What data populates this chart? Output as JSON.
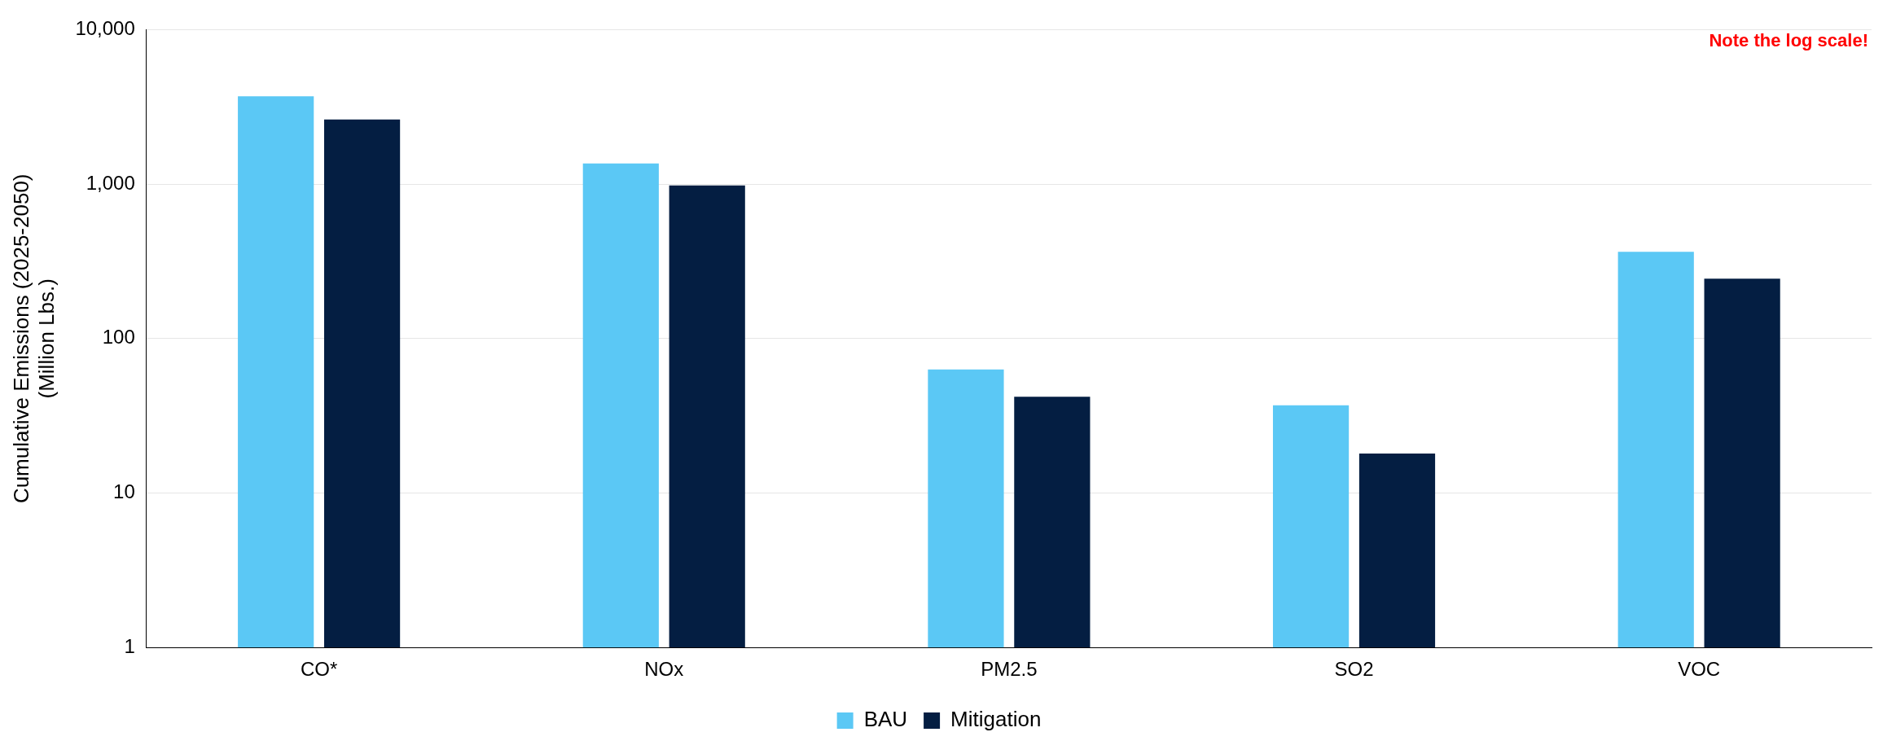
{
  "chart_data": {
    "type": "bar",
    "categories": [
      "CO*",
      "NOx",
      "PM2.5",
      "SO2",
      "VOC"
    ],
    "series": [
      {
        "name": "BAU",
        "color": "#5bc8f5",
        "values": [
          3700,
          1360,
          63,
          37,
          364
        ]
      },
      {
        "name": "Mitigation",
        "color": "#041e42",
        "values": [
          2620,
          980,
          42,
          18,
          244
        ]
      }
    ],
    "ylabel": "Cumulative Emissions (2025-2050)\n(Million Lbs.)",
    "log": true,
    "ylim": [
      1,
      10000
    ],
    "yticks": [
      1,
      10,
      100,
      {
        "value": 1000,
        "label": "1,000"
      },
      {
        "value": 10000,
        "label": "10,000"
      }
    ],
    "grid": "y",
    "legend": "bottom",
    "annotations": [
      "Note the log scale!"
    ]
  }
}
